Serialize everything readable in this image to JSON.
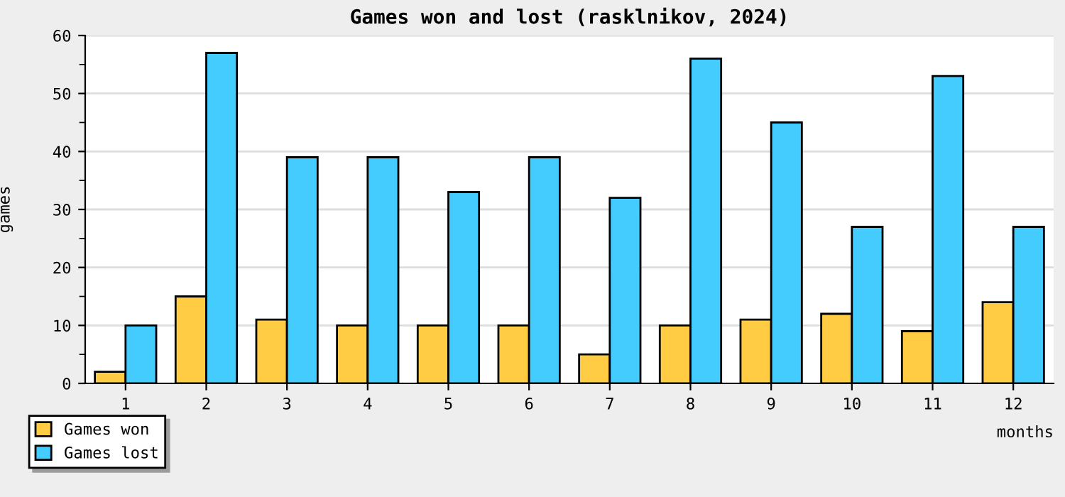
{
  "chart_data": {
    "type": "bar",
    "title": "Games won and lost (rasklnikov, 2024)",
    "xlabel": "months",
    "ylabel": "games",
    "categories": [
      "1",
      "2",
      "3",
      "4",
      "5",
      "6",
      "7",
      "8",
      "9",
      "10",
      "11",
      "12"
    ],
    "series": [
      {
        "name": "Games won",
        "color": "#ffcc44",
        "values": [
          2,
          15,
          11,
          10,
          10,
          10,
          5,
          10,
          11,
          12,
          9,
          14
        ]
      },
      {
        "name": "Games lost",
        "color": "#44ccff",
        "values": [
          10,
          57,
          39,
          39,
          33,
          39,
          32,
          56,
          45,
          27,
          53,
          27
        ]
      }
    ],
    "ylim": [
      0,
      60
    ],
    "yticks": [
      0,
      {
        "value": 5,
        "label": null
      },
      10,
      {
        "value": 15,
        "label": null
      },
      20,
      {
        "value": 25,
        "label": null
      },
      30,
      {
        "value": 35,
        "label": null
      },
      40,
      {
        "value": 45,
        "label": null
      },
      50,
      {
        "value": 55,
        "label": null
      },
      60
    ],
    "grid": "y",
    "legend": "bottom left"
  }
}
